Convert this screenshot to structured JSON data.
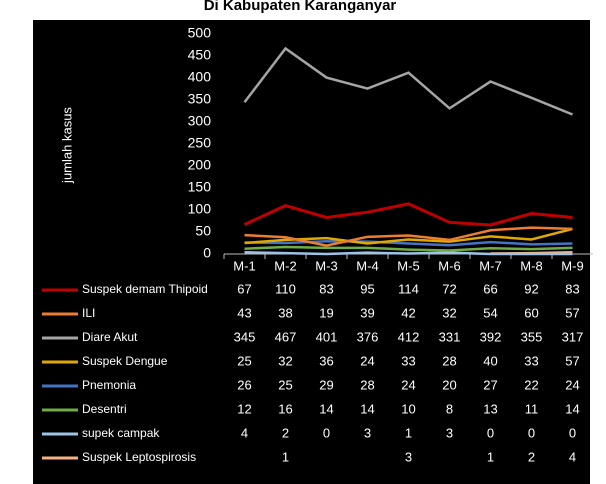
{
  "chart_data": {
    "type": "line",
    "title": "Di Kabupaten Karanganyar",
    "y_label": "jumlah kasus",
    "categories": [
      "M-1",
      "M-2",
      "M-3",
      "M-4",
      "M-5",
      "M-6",
      "M-7",
      "M-8",
      "M-9"
    ],
    "ylim": [
      0,
      500
    ],
    "yticks": [
      0,
      50,
      100,
      150,
      200,
      250,
      300,
      350,
      400,
      450,
      500
    ],
    "series": [
      {
        "name": "Suspek demam Thipoid",
        "color": "#c00000",
        "values": [
          67,
          110,
          83,
          95,
          114,
          72,
          66,
          92,
          83
        ]
      },
      {
        "name": "ILI",
        "color": "#ed7d31",
        "values": [
          43,
          38,
          19,
          39,
          42,
          32,
          54,
          60,
          57
        ]
      },
      {
        "name": "Diare Akut",
        "color": "#a5a5a5",
        "values": [
          345,
          467,
          401,
          376,
          412,
          331,
          392,
          355,
          317
        ]
      },
      {
        "name": "Suspek Dengue",
        "color": "#e0a800",
        "values": [
          25,
          32,
          36,
          24,
          33,
          28,
          40,
          33,
          57
        ]
      },
      {
        "name": "Pnemonia",
        "color": "#4472c4",
        "values": [
          26,
          25,
          29,
          28,
          24,
          20,
          27,
          22,
          24
        ]
      },
      {
        "name": "Desentri",
        "color": "#70ad47",
        "values": [
          12,
          16,
          14,
          14,
          10,
          8,
          13,
          11,
          14
        ]
      },
      {
        "name": "supek campak",
        "color": "#9dc3e6",
        "values": [
          4,
          2,
          0,
          3,
          1,
          3,
          0,
          0,
          0
        ]
      },
      {
        "name": "Suspek Leptospirosis",
        "color": "#f4b183",
        "values": [
          null,
          1,
          null,
          null,
          3,
          null,
          1,
          2,
          4
        ]
      }
    ]
  }
}
